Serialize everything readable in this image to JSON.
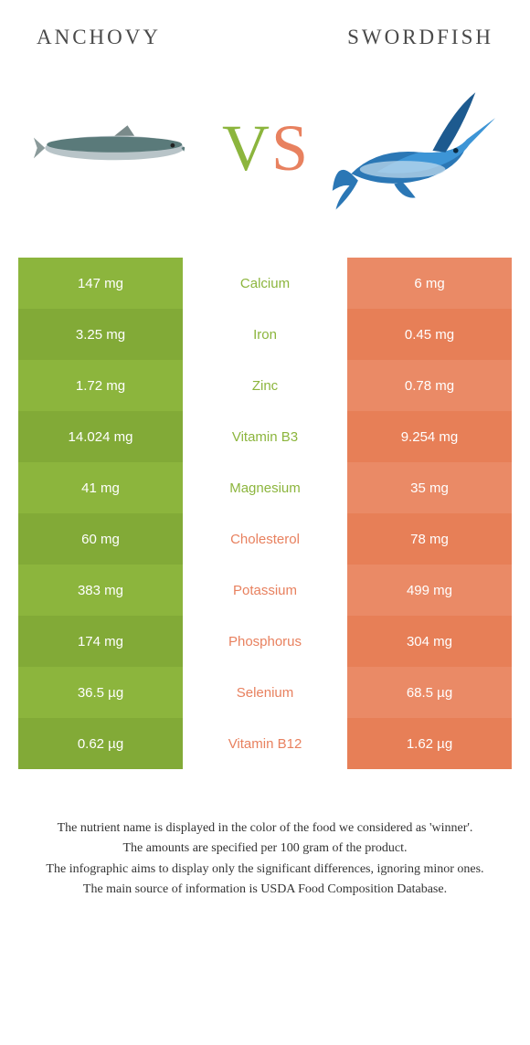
{
  "titles": {
    "left": "Anchovy",
    "right": "Swordfish"
  },
  "vs": {
    "v": "V",
    "s": "S"
  },
  "colors": {
    "left_a": "#8cb53d",
    "left_b": "#82aa37",
    "right_a": "#ea8a66",
    "right_b": "#e77f57",
    "mid_left": "#8cb53d",
    "mid_right": "#e8815f",
    "title_text": "#4a4a4a",
    "foot_text": "#333333"
  },
  "rows": [
    {
      "left": "147 mg",
      "label": "Calcium",
      "right": "6 mg",
      "winner": "left"
    },
    {
      "left": "3.25 mg",
      "label": "Iron",
      "right": "0.45 mg",
      "winner": "left"
    },
    {
      "left": "1.72 mg",
      "label": "Zinc",
      "right": "0.78 mg",
      "winner": "left"
    },
    {
      "left": "14.024 mg",
      "label": "Vitamin B3",
      "right": "9.254 mg",
      "winner": "left"
    },
    {
      "left": "41 mg",
      "label": "Magnesium",
      "right": "35 mg",
      "winner": "left"
    },
    {
      "left": "60 mg",
      "label": "Cholesterol",
      "right": "78 mg",
      "winner": "right"
    },
    {
      "left": "383 mg",
      "label": "Potassium",
      "right": "499 mg",
      "winner": "right"
    },
    {
      "left": "174 mg",
      "label": "Phosphorus",
      "right": "304 mg",
      "winner": "right"
    },
    {
      "left": "36.5 µg",
      "label": "Selenium",
      "right": "68.5 µg",
      "winner": "right"
    },
    {
      "left": "0.62 µg",
      "label": "Vitamin B12",
      "right": "1.62 µg",
      "winner": "right"
    }
  ],
  "footnotes": [
    "The nutrient name is displayed in the color of the food we considered as 'winner'.",
    "The amounts are specified per 100 gram of the product.",
    "The infographic aims to display only the significant differences, ignoring minor ones.",
    "The main source of information is USDA Food Composition Database."
  ]
}
